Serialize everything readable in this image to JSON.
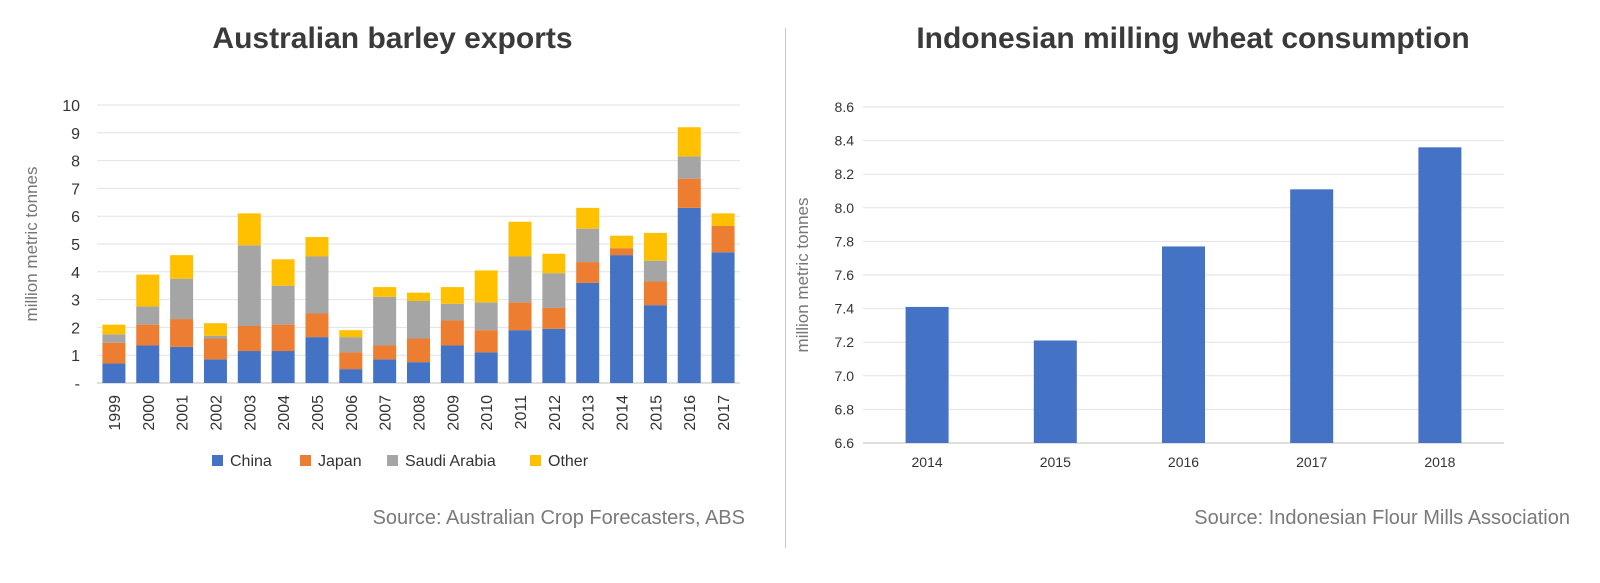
{
  "chart_data": [
    {
      "type": "bar",
      "stacked": true,
      "title": "Australian barley exports",
      "ylabel": "million metric tonnes",
      "xlabel": "",
      "ylim": [
        0,
        10
      ],
      "yticks": [
        "-",
        "1",
        "2",
        "3",
        "4",
        "5",
        "6",
        "7",
        "8",
        "9",
        "10"
      ],
      "grid": true,
      "legend_position": "bottom",
      "categories": [
        "1999",
        "2000",
        "2001",
        "2002",
        "2003",
        "2004",
        "2005",
        "2006",
        "2007",
        "2008",
        "2009",
        "2010",
        "2011",
        "2012",
        "2013",
        "2014",
        "2015",
        "2016",
        "2017"
      ],
      "series": [
        {
          "name": "China",
          "color": "#4472c4",
          "values": [
            0.7,
            1.35,
            1.3,
            0.85,
            1.15,
            1.15,
            1.65,
            0.5,
            0.85,
            0.75,
            1.35,
            1.1,
            1.9,
            1.95,
            3.6,
            4.6,
            2.8,
            6.3,
            4.7
          ]
        },
        {
          "name": "Japan",
          "color": "#ed7d31",
          "values": [
            0.75,
            0.75,
            1.0,
            0.75,
            0.9,
            0.95,
            0.85,
            0.6,
            0.5,
            0.85,
            0.9,
            0.8,
            1.0,
            0.75,
            0.75,
            0.25,
            0.85,
            1.05,
            0.95
          ]
        },
        {
          "name": "Saudi Arabia",
          "color": "#a5a5a5",
          "values": [
            0.3,
            0.65,
            1.45,
            0.1,
            2.9,
            1.4,
            2.05,
            0.55,
            1.75,
            1.35,
            0.6,
            1.0,
            1.65,
            1.25,
            1.2,
            0.0,
            0.75,
            0.8,
            0.0
          ]
        },
        {
          "name": "Other",
          "color": "#ffc000",
          "values": [
            0.35,
            1.15,
            0.85,
            0.45,
            1.15,
            0.95,
            0.7,
            0.25,
            0.35,
            0.3,
            0.6,
            1.15,
            1.25,
            0.7,
            0.75,
            0.45,
            1.0,
            1.05,
            0.45
          ]
        }
      ],
      "source": "Source: Australian Crop Forecasters, ABS"
    },
    {
      "type": "bar",
      "title": "Indonesian milling wheat consumption",
      "ylabel": "million metric tonnes",
      "xlabel": "",
      "ylim": [
        6.6,
        8.6
      ],
      "yticks": [
        "6.6",
        "6.8",
        "7.0",
        "7.2",
        "7.4",
        "7.6",
        "7.8",
        "8.0",
        "8.2",
        "8.4",
        "8.6"
      ],
      "grid": true,
      "categories": [
        "2014",
        "2015",
        "2016",
        "2017",
        "2018"
      ],
      "series": [
        {
          "color": "#4472c4",
          "values": [
            7.41,
            7.21,
            7.77,
            8.11,
            8.36
          ]
        }
      ],
      "source": "Source: Indonesian Flour Mills Association"
    }
  ]
}
